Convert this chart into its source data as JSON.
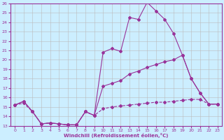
{
  "xlabel": "Windchill (Refroidissement éolien,°C)",
  "bg_color": "#cceeff",
  "line_color": "#993399",
  "grid_color": "#bbbbbb",
  "xlim": [
    -0.5,
    23.5
  ],
  "ylim": [
    13,
    26
  ],
  "yticks": [
    13,
    14,
    15,
    16,
    17,
    18,
    19,
    20,
    21,
    22,
    23,
    24,
    25,
    26
  ],
  "xticks": [
    0,
    1,
    2,
    3,
    4,
    5,
    6,
    7,
    8,
    9,
    10,
    11,
    12,
    13,
    14,
    15,
    16,
    17,
    18,
    19,
    20,
    21,
    22,
    23
  ],
  "line_top_x": [
    0,
    1,
    2,
    3,
    4,
    5,
    6,
    7,
    8,
    9,
    10,
    11,
    12,
    13,
    14,
    15,
    16,
    17,
    18,
    19,
    20,
    21,
    22,
    23
  ],
  "line_top_y": [
    15.2,
    15.6,
    14.5,
    13.2,
    13.3,
    13.2,
    13.1,
    13.1,
    14.5,
    14.1,
    20.8,
    21.2,
    20.9,
    24.5,
    24.3,
    26.1,
    25.2,
    24.3,
    22.8,
    20.5,
    18.0,
    16.5,
    15.3,
    15.3
  ],
  "line_mid_x": [
    0,
    1,
    2,
    3,
    4,
    5,
    6,
    7,
    8,
    9,
    10,
    11,
    12,
    13,
    14,
    15,
    16,
    17,
    18,
    19,
    20,
    21,
    22,
    23
  ],
  "line_mid_y": [
    15.2,
    15.6,
    14.5,
    13.2,
    13.3,
    13.2,
    13.1,
    13.1,
    14.5,
    14.1,
    17.2,
    17.5,
    17.8,
    18.5,
    18.8,
    19.2,
    19.5,
    19.8,
    20.0,
    20.5,
    18.0,
    16.5,
    15.3,
    15.3
  ],
  "line_bot_x": [
    0,
    1,
    2,
    3,
    4,
    5,
    6,
    7,
    8,
    9,
    10,
    11,
    12,
    13,
    14,
    15,
    16,
    17,
    18,
    19,
    20,
    21,
    22,
    23
  ],
  "line_bot_y": [
    15.2,
    15.4,
    14.5,
    13.2,
    13.3,
    13.2,
    13.1,
    13.1,
    14.5,
    14.1,
    14.8,
    15.0,
    15.1,
    15.2,
    15.3,
    15.4,
    15.5,
    15.5,
    15.6,
    15.7,
    15.8,
    15.8,
    15.3,
    15.3
  ],
  "marker": "D",
  "marker_size": 2.0,
  "linewidth": 0.8
}
